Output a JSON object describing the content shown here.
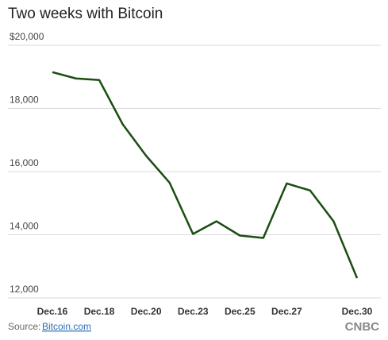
{
  "chart_data": {
    "type": "line",
    "title": "Two weeks with Bitcoin",
    "categories": [
      "Dec.16",
      null,
      "Dec.18",
      null,
      "Dec.20",
      null,
      "Dec.23",
      null,
      "Dec.25",
      null,
      "Dec.27",
      null,
      null,
      "Dec.30"
    ],
    "series": [
      {
        "name": "Bitcoin",
        "color": "#1b4d12",
        "values": [
          19150,
          18950,
          18900,
          17500,
          16500,
          15650,
          14025,
          14425,
          13975,
          13900,
          15625,
          15400,
          14425,
          12625
        ]
      }
    ],
    "ylim": [
      12000,
      20000
    ],
    "yticks": [
      {
        "value": 12000,
        "label": "12,000"
      },
      {
        "value": 14000,
        "label": "14,000"
      },
      {
        "value": 16000,
        "label": "16,000"
      },
      {
        "value": 18000,
        "label": "18,000"
      },
      {
        "value": 20000,
        "label": "$20,000"
      }
    ],
    "grid": true,
    "source_label": "Source:",
    "source": "Bitcoin.com",
    "logo": "CNBC"
  }
}
